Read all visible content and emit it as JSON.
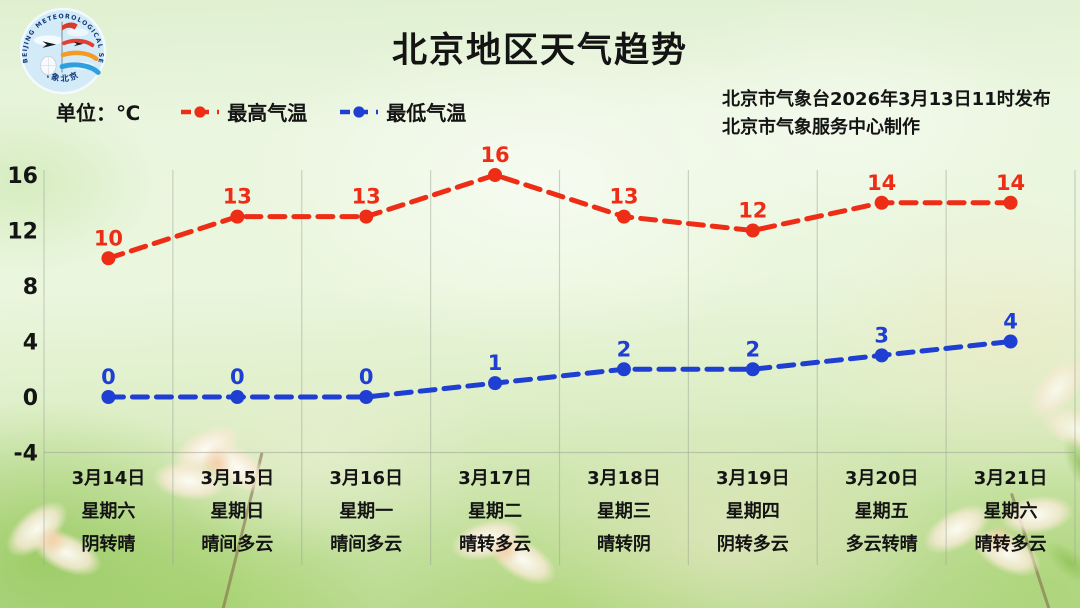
{
  "header": {
    "title": "北京地区天气趋势",
    "publisher_line1": "北京市气象台2026年3月13日11时发布",
    "publisher_line2": "北京市气象服务中心制作",
    "unit_label": "单位：℃",
    "logo": {
      "ring_text": "BEIJING METEOROLOGICAL SERVICE",
      "bottom_text": "气象北京"
    }
  },
  "legend": [
    {
      "label": "最高气温",
      "color": "#ed2d16"
    },
    {
      "label": "最低气温",
      "color": "#1e3fd2"
    }
  ],
  "chart_data": {
    "type": "line",
    "title": "北京地区天气趋势",
    "unit": "℃",
    "line_style": "dashed",
    "marker": "circle",
    "grid": "vertical-column-separators",
    "legend_position": "top-left",
    "ylim": [
      -4,
      16
    ],
    "y_ticks": [
      16,
      12,
      8,
      4,
      0,
      -4
    ],
    "categories": [
      {
        "date": "3月14日",
        "weekday": "星期六",
        "weather": "阴转晴"
      },
      {
        "date": "3月15日",
        "weekday": "星期日",
        "weather": "晴间多云"
      },
      {
        "date": "3月16日",
        "weekday": "星期一",
        "weather": "晴间多云"
      },
      {
        "date": "3月17日",
        "weekday": "星期二",
        "weather": "晴转多云"
      },
      {
        "date": "3月18日",
        "weekday": "星期三",
        "weather": "晴转阴"
      },
      {
        "date": "3月19日",
        "weekday": "星期四",
        "weather": "阴转多云"
      },
      {
        "date": "3月20日",
        "weekday": "星期五",
        "weather": "多云转晴"
      },
      {
        "date": "3月21日",
        "weekday": "星期六",
        "weather": "晴转多云"
      }
    ],
    "series": [
      {
        "name": "最高气温",
        "color": "#ed2d16",
        "values": [
          10,
          13,
          13,
          16,
          13,
          12,
          14,
          14
        ]
      },
      {
        "name": "最低气温",
        "color": "#1e3fd2",
        "values": [
          0,
          0,
          0,
          1,
          2,
          2,
          3,
          4
        ]
      }
    ]
  },
  "colors": {
    "grid": "#9aa194",
    "text": "#141414",
    "background_top": "#dff0d0",
    "background_bottom": "#b7d98d"
  }
}
